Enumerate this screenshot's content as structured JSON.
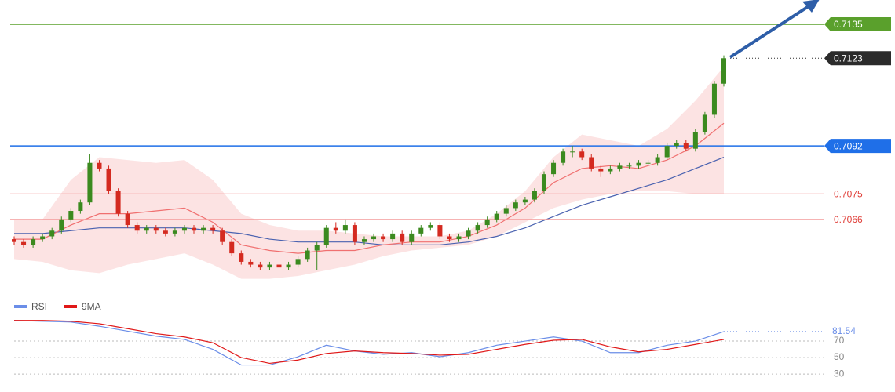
{
  "chart_data": [
    {
      "type": "candlestick",
      "xlim": [
        0,
        75
      ],
      "ylim": [
        0.7041,
        0.71436
      ],
      "up_color": "#3b8a1f",
      "down_color": "#d42a20",
      "candles": [
        [
          0.7059,
          0.706,
          0.7057,
          0.7058
        ],
        [
          0.7058,
          0.7059,
          0.7056,
          0.7057
        ],
        [
          0.7057,
          0.706,
          0.7056,
          0.7059
        ],
        [
          0.7059,
          0.7061,
          0.7058,
          0.706
        ],
        [
          0.706,
          0.7063,
          0.7059,
          0.7062
        ],
        [
          0.7062,
          0.7067,
          0.7061,
          0.7066
        ],
        [
          0.7066,
          0.707,
          0.7065,
          0.7069
        ],
        [
          0.7069,
          0.7073,
          0.7068,
          0.7072
        ],
        [
          0.7072,
          0.7089,
          0.7071,
          0.7086
        ],
        [
          0.7086,
          0.7087,
          0.7083,
          0.7084
        ],
        [
          0.7084,
          0.7085,
          0.7075,
          0.7076
        ],
        [
          0.7076,
          0.7077,
          0.7067,
          0.7068
        ],
        [
          0.7068,
          0.7069,
          0.7063,
          0.7064
        ],
        [
          0.7064,
          0.7065,
          0.7061,
          0.7062
        ],
        [
          0.7062,
          0.7064,
          0.7061,
          0.7063
        ],
        [
          0.7063,
          0.7064,
          0.7061,
          0.7062
        ],
        [
          0.7062,
          0.7063,
          0.706,
          0.7061
        ],
        [
          0.7061,
          0.7063,
          0.706,
          0.7062
        ],
        [
          0.7062,
          0.7064,
          0.7061,
          0.7063
        ],
        [
          0.7063,
          0.7064,
          0.7061,
          0.7062
        ],
        [
          0.7062,
          0.7064,
          0.7061,
          0.7063
        ],
        [
          0.7063,
          0.7064,
          0.7061,
          0.7062
        ],
        [
          0.7062,
          0.7063,
          0.7057,
          0.7058
        ],
        [
          0.7058,
          0.7059,
          0.7053,
          0.7054
        ],
        [
          0.7054,
          0.7055,
          0.705,
          0.7051
        ],
        [
          0.7051,
          0.7052,
          0.7049,
          0.705
        ],
        [
          0.705,
          0.7051,
          0.7048,
          0.7049
        ],
        [
          0.7049,
          0.7051,
          0.7048,
          0.705
        ],
        [
          0.705,
          0.7051,
          0.7048,
          0.7049
        ],
        [
          0.7049,
          0.7051,
          0.7048,
          0.705
        ],
        [
          0.705,
          0.7053,
          0.7049,
          0.7052
        ],
        [
          0.7052,
          0.7056,
          0.7051,
          0.7055
        ],
        [
          0.7055,
          0.7058,
          0.7048,
          0.7057
        ],
        [
          0.7057,
          0.7064,
          0.7056,
          0.7063
        ],
        [
          0.7063,
          0.7065,
          0.7061,
          0.7062
        ],
        [
          0.7062,
          0.7066,
          0.7061,
          0.7064
        ],
        [
          0.7064,
          0.7065,
          0.7057,
          0.7058
        ],
        [
          0.7058,
          0.706,
          0.7057,
          0.7059
        ],
        [
          0.7059,
          0.7061,
          0.7058,
          0.706
        ],
        [
          0.706,
          0.7061,
          0.7058,
          0.7059
        ],
        [
          0.7059,
          0.7062,
          0.7058,
          0.7061
        ],
        [
          0.7061,
          0.7062,
          0.7057,
          0.7058
        ],
        [
          0.7058,
          0.7062,
          0.7057,
          0.7061
        ],
        [
          0.7061,
          0.7064,
          0.706,
          0.7063
        ],
        [
          0.7063,
          0.7065,
          0.7062,
          0.7064
        ],
        [
          0.7064,
          0.7065,
          0.7059,
          0.706
        ],
        [
          0.706,
          0.7061,
          0.7058,
          0.7059
        ],
        [
          0.7059,
          0.7061,
          0.7058,
          0.706
        ],
        [
          0.706,
          0.7063,
          0.7059,
          0.7062
        ],
        [
          0.7062,
          0.7065,
          0.7061,
          0.7064
        ],
        [
          0.7064,
          0.7067,
          0.7063,
          0.7066
        ],
        [
          0.7066,
          0.7069,
          0.7065,
          0.7068
        ],
        [
          0.7068,
          0.7071,
          0.7067,
          0.707
        ],
        [
          0.707,
          0.7073,
          0.7069,
          0.7072
        ],
        [
          0.7072,
          0.7074,
          0.7071,
          0.7073
        ],
        [
          0.7073,
          0.7077,
          0.7072,
          0.7076
        ],
        [
          0.7076,
          0.7083,
          0.7075,
          0.7082
        ],
        [
          0.7082,
          0.7087,
          0.7081,
          0.7086
        ],
        [
          0.7086,
          0.7091,
          0.7085,
          0.709
        ],
        [
          0.709,
          0.7092,
          0.7088,
          0.709
        ],
        [
          0.709,
          0.7091,
          0.7087,
          0.7088
        ],
        [
          0.7088,
          0.7089,
          0.7083,
          0.7084
        ],
        [
          0.7084,
          0.7085,
          0.7081,
          0.7083
        ],
        [
          0.7083,
          0.7085,
          0.7082,
          0.7084
        ],
        [
          0.7084,
          0.7086,
          0.7083,
          0.7085
        ],
        [
          0.7085,
          0.7086,
          0.7084,
          0.7085
        ],
        [
          0.7085,
          0.7087,
          0.7084,
          0.7086
        ],
        [
          0.7086,
          0.7087,
          0.7085,
          0.7086
        ],
        [
          0.7086,
          0.7089,
          0.7085,
          0.7088
        ],
        [
          0.7088,
          0.7093,
          0.7087,
          0.7092
        ],
        [
          0.7092,
          0.7094,
          0.7091,
          0.7093
        ],
        [
          0.7093,
          0.7094,
          0.709,
          0.7091
        ],
        [
          0.7091,
          0.7098,
          0.709,
          0.7097
        ],
        [
          0.7097,
          0.7104,
          0.7096,
          0.7103
        ],
        [
          0.7103,
          0.7115,
          0.7102,
          0.7114
        ],
        [
          0.7114,
          0.7124,
          0.7113,
          0.7123
        ]
      ],
      "bollinger": {
        "color": "#fcdede",
        "x": [
          0,
          3,
          6,
          9,
          12,
          15,
          18,
          21,
          24,
          27,
          30,
          33,
          36,
          39,
          42,
          45,
          48,
          51,
          54,
          57,
          60,
          63,
          66,
          69,
          72,
          75
        ],
        "upper": [
          0.7066,
          0.7066,
          0.708,
          0.7088,
          0.7087,
          0.7086,
          0.7087,
          0.708,
          0.7068,
          0.7064,
          0.7062,
          0.7062,
          0.7061,
          0.706,
          0.706,
          0.706,
          0.7062,
          0.7068,
          0.7076,
          0.7088,
          0.7096,
          0.7094,
          0.7092,
          0.7098,
          0.7108,
          0.712
        ],
        "lower": [
          0.7052,
          0.7051,
          0.7048,
          0.7047,
          0.705,
          0.7052,
          0.7054,
          0.705,
          0.7045,
          0.7045,
          0.7046,
          0.7048,
          0.705,
          0.7053,
          0.7055,
          0.7056,
          0.7057,
          0.706,
          0.7065,
          0.707,
          0.7073,
          0.7075,
          0.7076,
          0.7076,
          0.7075,
          0.7075
        ]
      },
      "ma_fast": {
        "color": "#f07070",
        "x": [
          0,
          3,
          6,
          9,
          12,
          15,
          18,
          21,
          24,
          27,
          30,
          33,
          36,
          39,
          42,
          45,
          48,
          51,
          54,
          57,
          60,
          63,
          66,
          69,
          72,
          75
        ],
        "values": [
          0.7059,
          0.7059,
          0.7064,
          0.7068,
          0.7068,
          0.7069,
          0.707,
          0.7065,
          0.7057,
          0.7055,
          0.7054,
          0.7055,
          0.7055,
          0.7057,
          0.7058,
          0.7058,
          0.706,
          0.7064,
          0.707,
          0.7079,
          0.7084,
          0.7085,
          0.7084,
          0.7087,
          0.7092,
          0.71
        ]
      },
      "ma_slow": {
        "color": "#4a62b0",
        "x": [
          0,
          3,
          6,
          9,
          12,
          15,
          18,
          21,
          24,
          27,
          30,
          33,
          36,
          39,
          42,
          45,
          48,
          51,
          54,
          57,
          60,
          63,
          66,
          69,
          72,
          75
        ],
        "values": [
          0.7061,
          0.7061,
          0.7062,
          0.7063,
          0.7063,
          0.7063,
          0.7063,
          0.7062,
          0.7061,
          0.7059,
          0.7058,
          0.7058,
          0.7058,
          0.7057,
          0.7057,
          0.7057,
          0.7058,
          0.706,
          0.7063,
          0.7067,
          0.7071,
          0.7074,
          0.7077,
          0.708,
          0.7084,
          0.7088
        ]
      },
      "levels": [
        {
          "value": 0.7135,
          "color": "#5aa02c",
          "style": "solid",
          "badge": true
        },
        {
          "value": 0.7123,
          "color": "#2b2b2b",
          "style": "dotted",
          "badge": true
        },
        {
          "value": 0.7092,
          "color": "#1f6fe8",
          "style": "solid",
          "badge": true
        },
        {
          "value": 0.7075,
          "color": "#f39a9a",
          "text_color": "#e0403a",
          "style": "solid",
          "badge": false
        },
        {
          "value": 0.7066,
          "color": "#f39a9a",
          "text_color": "#e0403a",
          "style": "solid",
          "badge": false
        }
      ]
    },
    {
      "type": "line",
      "xlim": [
        0,
        75
      ],
      "ylim": [
        13,
        103.3
      ],
      "yticks": [
        70,
        50,
        30
      ],
      "x": [
        0,
        3,
        6,
        9,
        12,
        15,
        18,
        21,
        24,
        27,
        30,
        33,
        36,
        39,
        42,
        45,
        48,
        51,
        54,
        57,
        60,
        63,
        66,
        69,
        72,
        75
      ],
      "series": [
        {
          "name": "RSI",
          "color": "#6b8ee8",
          "values": [
            95,
            94,
            93,
            88,
            82,
            76,
            72,
            60,
            41,
            41,
            51,
            65,
            58,
            54,
            56,
            51,
            56,
            65,
            70,
            75,
            70,
            56,
            56,
            65,
            70,
            81.54
          ]
        },
        {
          "name": "9MA",
          "color": "#e01818",
          "values": [
            95,
            95,
            94,
            91,
            85,
            79,
            75,
            68,
            50,
            43,
            47,
            55,
            58,
            56,
            55,
            53,
            54,
            60,
            66,
            71,
            72,
            63,
            57,
            60,
            66,
            72
          ]
        }
      ]
    }
  ]
}
